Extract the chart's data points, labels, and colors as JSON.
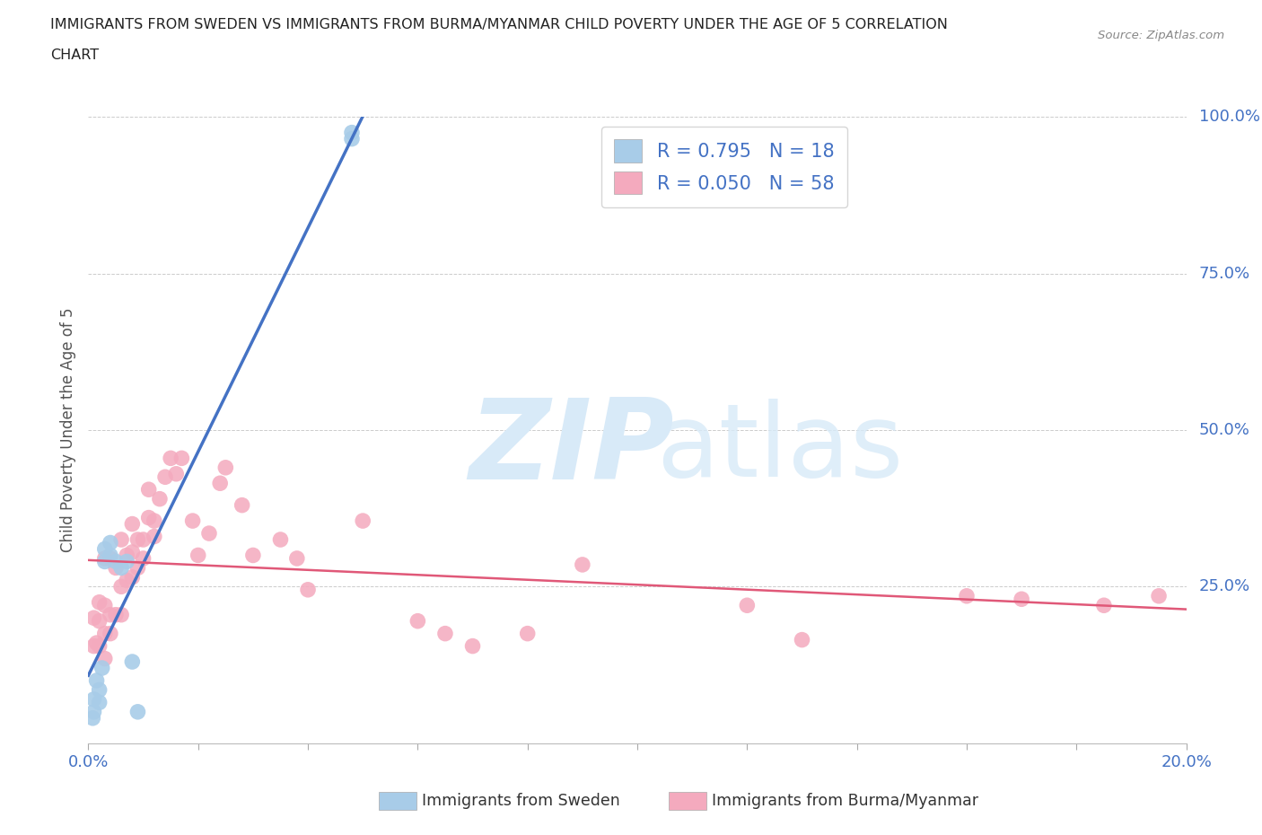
{
  "title_line1": "IMMIGRANTS FROM SWEDEN VS IMMIGRANTS FROM BURMA/MYANMAR CHILD POVERTY UNDER THE AGE OF 5 CORRELATION",
  "title_line2": "CHART",
  "source": "Source: ZipAtlas.com",
  "ylabel": "Child Poverty Under the Age of 5",
  "xlim": [
    0.0,
    0.2
  ],
  "ylim": [
    0.0,
    1.0
  ],
  "sweden_R": 0.795,
  "sweden_N": 18,
  "burma_R": 0.05,
  "burma_N": 58,
  "sweden_color": "#A8CCE8",
  "burma_color": "#F4AABE",
  "sweden_line_color": "#4472C4",
  "burma_line_color": "#E05878",
  "axis_label_color": "#4472C4",
  "background_color": "#FFFFFF",
  "sweden_x": [
    0.0008,
    0.001,
    0.001,
    0.0015,
    0.002,
    0.002,
    0.0025,
    0.003,
    0.003,
    0.004,
    0.004,
    0.005,
    0.006,
    0.007,
    0.008,
    0.009,
    0.048,
    0.048
  ],
  "sweden_y": [
    0.04,
    0.05,
    0.07,
    0.1,
    0.065,
    0.085,
    0.12,
    0.29,
    0.31,
    0.3,
    0.32,
    0.29,
    0.28,
    0.29,
    0.13,
    0.05,
    0.965,
    0.975
  ],
  "burma_x": [
    0.001,
    0.001,
    0.0015,
    0.002,
    0.002,
    0.002,
    0.003,
    0.003,
    0.003,
    0.003,
    0.004,
    0.004,
    0.004,
    0.005,
    0.005,
    0.006,
    0.006,
    0.006,
    0.007,
    0.007,
    0.008,
    0.008,
    0.008,
    0.009,
    0.009,
    0.01,
    0.01,
    0.011,
    0.011,
    0.012,
    0.012,
    0.013,
    0.014,
    0.015,
    0.016,
    0.017,
    0.019,
    0.02,
    0.022,
    0.024,
    0.025,
    0.028,
    0.03,
    0.035,
    0.038,
    0.04,
    0.05,
    0.06,
    0.065,
    0.07,
    0.08,
    0.09,
    0.12,
    0.13,
    0.16,
    0.17,
    0.185,
    0.195
  ],
  "burma_y": [
    0.155,
    0.2,
    0.16,
    0.155,
    0.195,
    0.225,
    0.135,
    0.175,
    0.22,
    0.295,
    0.175,
    0.205,
    0.295,
    0.205,
    0.28,
    0.205,
    0.25,
    0.325,
    0.26,
    0.3,
    0.265,
    0.305,
    0.35,
    0.28,
    0.325,
    0.295,
    0.325,
    0.36,
    0.405,
    0.33,
    0.355,
    0.39,
    0.425,
    0.455,
    0.43,
    0.455,
    0.355,
    0.3,
    0.335,
    0.415,
    0.44,
    0.38,
    0.3,
    0.325,
    0.295,
    0.245,
    0.355,
    0.195,
    0.175,
    0.155,
    0.175,
    0.285,
    0.22,
    0.165,
    0.235,
    0.23,
    0.22,
    0.235
  ],
  "xtick_positions": [
    0.0,
    0.02,
    0.04,
    0.06,
    0.08,
    0.1,
    0.12,
    0.14,
    0.16,
    0.18,
    0.2
  ],
  "ytick_positions": [
    0.0,
    0.25,
    0.5,
    0.75,
    1.0
  ],
  "ytick_labels": [
    "",
    "25.0%",
    "50.0%",
    "75.0%",
    "100.0%"
  ]
}
